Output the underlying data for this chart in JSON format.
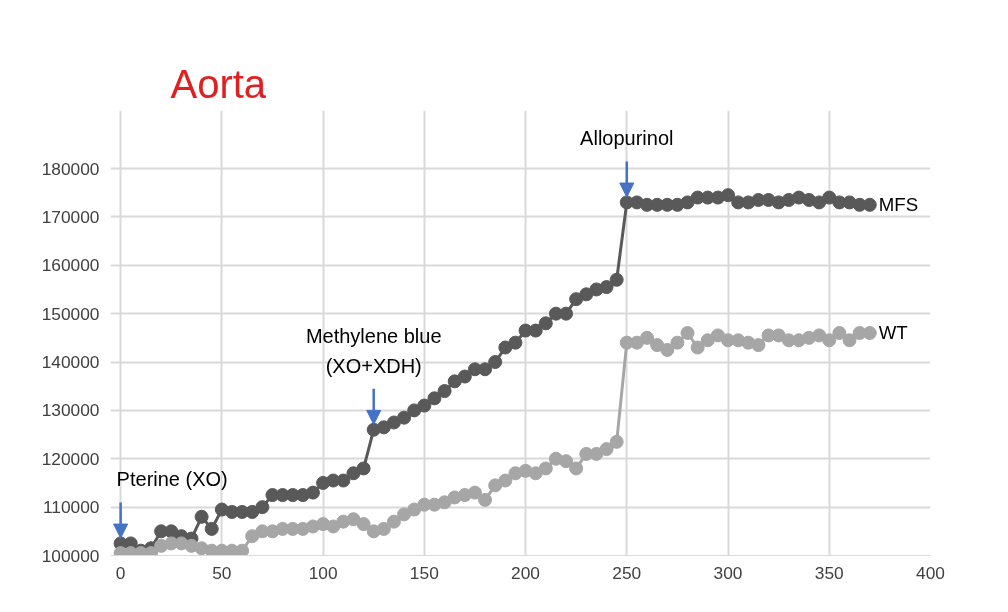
{
  "chart_data": {
    "type": "line",
    "title": "Aorta",
    "marker": "circle",
    "grid": true,
    "x": [
      0,
      5,
      10,
      15,
      20,
      25,
      30,
      35,
      40,
      45,
      50,
      55,
      60,
      65,
      70,
      75,
      80,
      85,
      90,
      95,
      100,
      105,
      110,
      115,
      120,
      125,
      130,
      135,
      140,
      145,
      150,
      155,
      160,
      165,
      170,
      175,
      180,
      185,
      190,
      195,
      200,
      205,
      210,
      215,
      220,
      225,
      230,
      235,
      240,
      245,
      250,
      255,
      260,
      265,
      270,
      275,
      280,
      285,
      290,
      295,
      300,
      305,
      310,
      315,
      320,
      325,
      330,
      335,
      340,
      345,
      350,
      355,
      360,
      365,
      370
    ],
    "series": [
      {
        "name": "MFS",
        "color": "#595959",
        "values": [
          102500,
          102500,
          101000,
          101500,
          105000,
          105000,
          104000,
          103500,
          108000,
          105500,
          109500,
          109000,
          109000,
          109000,
          110000,
          112500,
          112500,
          112500,
          112500,
          113000,
          115000,
          115500,
          115500,
          117000,
          118000,
          126000,
          126500,
          127500,
          128500,
          130000,
          131000,
          132500,
          134000,
          136000,
          137000,
          138500,
          138500,
          140000,
          143000,
          144000,
          146500,
          146500,
          148000,
          150000,
          150000,
          153000,
          154000,
          155000,
          155500,
          157000,
          173000,
          173000,
          172500,
          172500,
          172500,
          172500,
          173000,
          174000,
          174000,
          174000,
          174500,
          173000,
          173000,
          173500,
          173500,
          173000,
          173500,
          174000,
          173500,
          173000,
          174000,
          173000,
          173000,
          172500,
          172500
        ]
      },
      {
        "name": "WT",
        "color": "#a6a6a6",
        "values": [
          100500,
          100500,
          100500,
          100500,
          102000,
          102500,
          102500,
          102000,
          101500,
          101000,
          101000,
          101000,
          101000,
          104000,
          105000,
          105000,
          105500,
          105500,
          105500,
          106000,
          106500,
          106000,
          107000,
          107500,
          106500,
          105000,
          105500,
          107000,
          108500,
          109500,
          110500,
          110500,
          111000,
          112000,
          112500,
          113000,
          111500,
          114500,
          115500,
          117000,
          117500,
          117000,
          118000,
          120000,
          119500,
          118000,
          121000,
          121000,
          122000,
          123500,
          144000,
          144000,
          145000,
          143500,
          142500,
          144000,
          146000,
          143000,
          144500,
          145500,
          144500,
          144500,
          144000,
          143500,
          145500,
          145500,
          144500,
          144500,
          145000,
          145500,
          144500,
          146000,
          144500,
          146000,
          146000
        ]
      }
    ],
    "xlim": [
      -5,
      400
    ],
    "xticks": [
      0,
      50,
      100,
      150,
      200,
      250,
      300,
      350,
      400
    ],
    "ylim": [
      100000,
      192000
    ],
    "yticks": [
      100000,
      110000,
      120000,
      130000,
      140000,
      150000,
      160000,
      170000,
      180000
    ],
    "annotations": [
      {
        "text": "Pterine (XO)",
        "x": 0,
        "y": 102500
      },
      {
        "text": "Methylene blue\n(XO+XDH)",
        "x": 125,
        "y": 126000
      },
      {
        "text": "Allopurinol",
        "x": 250,
        "y": 173000
      }
    ]
  }
}
